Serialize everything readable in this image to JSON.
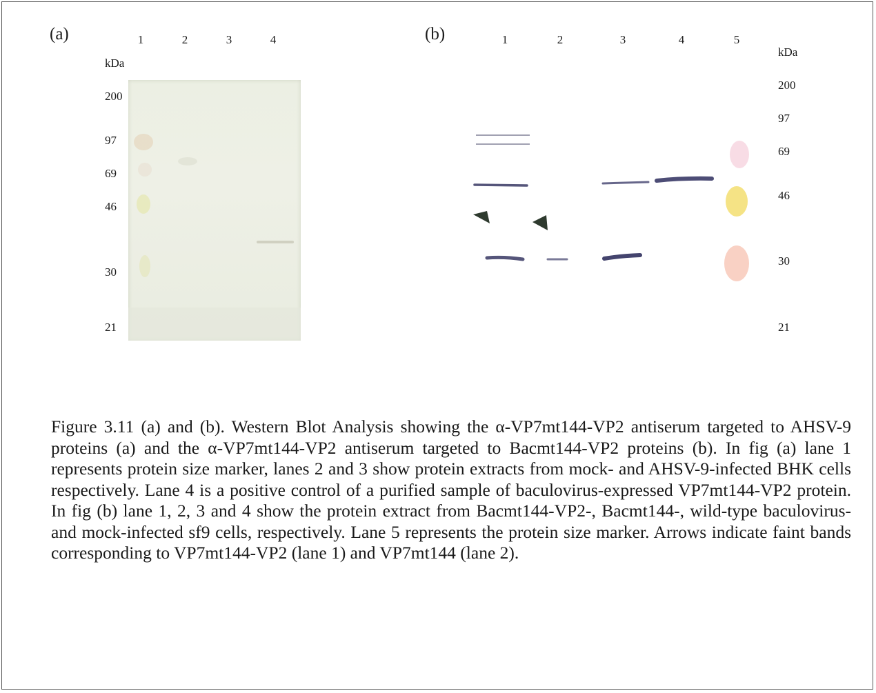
{
  "figure": {
    "panel_a": {
      "label": "(a)",
      "lanes": [
        "1",
        "2",
        "3",
        "4"
      ],
      "unit": "kDa",
      "markers": [
        "200",
        "97",
        "69",
        "46",
        "30",
        "21"
      ]
    },
    "panel_b": {
      "label": "(b)",
      "lanes": [
        "1",
        "2",
        "3",
        "4",
        "5"
      ],
      "unit": "kDa",
      "markers": [
        "200",
        "97",
        "69",
        "46",
        "30",
        "21"
      ]
    },
    "caption": "Figure 3.11 (a) and (b). Western Blot Analysis showing the α-VP7mt144-VP2 antiserum targeted to AHSV-9 proteins (a) and the α-VP7mt144-VP2 antiserum targeted to Bacmt144-VP2 proteins (b). In fig (a) lane 1 represents protein size marker, lanes 2 and 3 show protein extracts from mock- and AHSV-9-infected BHK cells respectively. Lane 4 is a positive control of a purified sample of baculovirus-expressed VP7mt144-VP2 protein. In fig (b) lane 1, 2, 3 and 4 show the protein extract from Bacmt144-VP2-, Bacmt144-, wild-type baculovirus- and mock-infected sf9 cells, respectively. Lane 5 represents the protein size marker. Arrows indicate faint bands corresponding to VP7mt144-VP2 (lane 1) and VP7mt144 (lane 2).",
    "colors": {
      "band": "#55557a",
      "arrow": "#2e3a2e",
      "membrane": "#eceee3"
    }
  }
}
